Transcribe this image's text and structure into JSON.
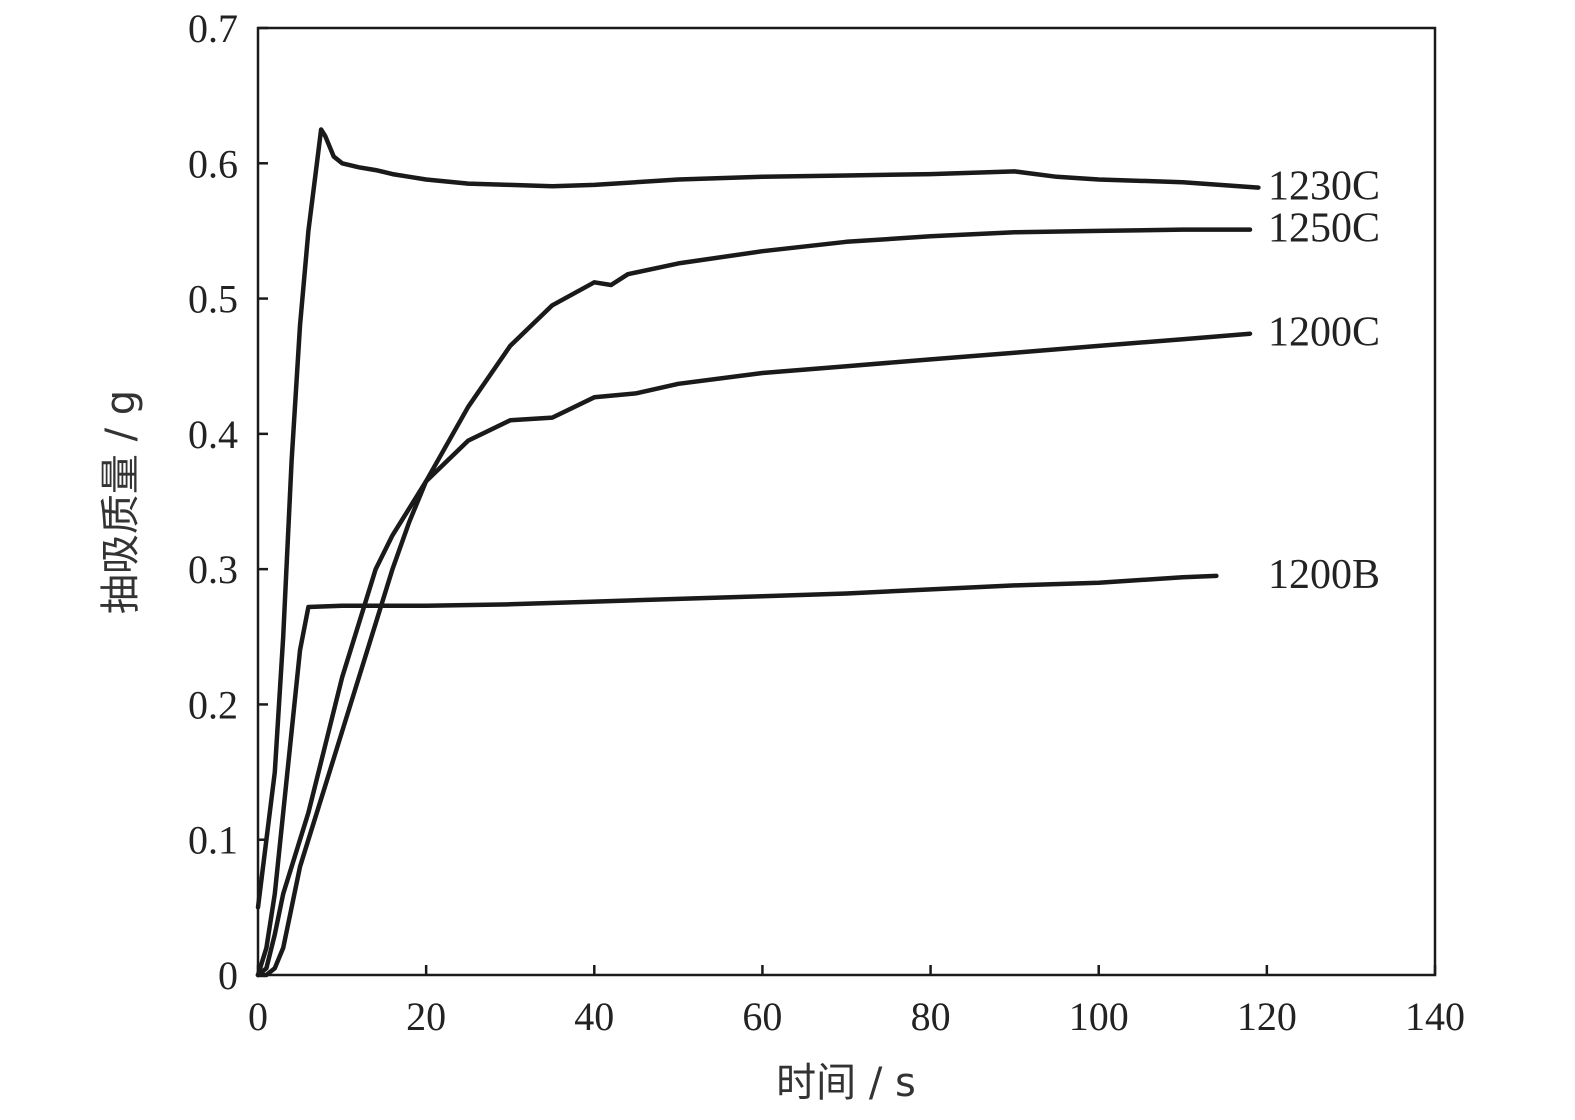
{
  "chart_data": {
    "type": "line",
    "title": "",
    "xlabel": "时间 / s",
    "ylabel": "抽吸质量 / g",
    "xlim": [
      0,
      140
    ],
    "ylim": [
      0,
      0.7
    ],
    "x_ticks": [
      0,
      20,
      40,
      60,
      80,
      100,
      120,
      140
    ],
    "x_tick_labels": [
      "0",
      "20",
      "40",
      "60",
      "80",
      "100",
      "120",
      "140"
    ],
    "y_ticks": [
      0,
      0.1,
      0.2,
      0.3,
      0.4,
      0.5,
      0.6,
      0.7
    ],
    "y_tick_labels": [
      "0",
      "0.1",
      "0.2",
      "0.3",
      "0.4",
      "0.5",
      "0.6",
      "0.7"
    ],
    "grid": false,
    "legend": "none",
    "line_color": "#1a1a1a",
    "series": [
      {
        "name": "1230C",
        "x": [
          0,
          1,
          2,
          3,
          4,
          5,
          6,
          7,
          7.5,
          8,
          9,
          10,
          12,
          14,
          16,
          18,
          20,
          25,
          30,
          35,
          40,
          50,
          60,
          70,
          80,
          90,
          95,
          100,
          110,
          119
        ],
        "y": [
          0.05,
          0.1,
          0.15,
          0.25,
          0.38,
          0.48,
          0.55,
          0.6,
          0.625,
          0.62,
          0.605,
          0.6,
          0.597,
          0.595,
          0.592,
          0.59,
          0.588,
          0.585,
          0.584,
          0.583,
          0.584,
          0.588,
          0.59,
          0.591,
          0.592,
          0.594,
          0.59,
          0.588,
          0.586,
          0.582
        ]
      },
      {
        "name": "1250C",
        "x": [
          0,
          1,
          2,
          3,
          4,
          5,
          6,
          8,
          10,
          12,
          14,
          16,
          18,
          20,
          25,
          30,
          35,
          40,
          42,
          44,
          50,
          60,
          70,
          80,
          90,
          100,
          110,
          118
        ],
        "y": [
          0,
          0,
          0.005,
          0.02,
          0.05,
          0.08,
          0.1,
          0.14,
          0.18,
          0.22,
          0.26,
          0.3,
          0.335,
          0.365,
          0.42,
          0.465,
          0.495,
          0.512,
          0.51,
          0.518,
          0.526,
          0.535,
          0.542,
          0.546,
          0.549,
          0.55,
          0.551,
          0.551
        ]
      },
      {
        "name": "1200C",
        "x": [
          0,
          1,
          2,
          3,
          4,
          5,
          6,
          8,
          10,
          12,
          14,
          16,
          18,
          20,
          25,
          30,
          35,
          40,
          45,
          50,
          60,
          70,
          80,
          90,
          100,
          110,
          118
        ],
        "y": [
          0,
          0.005,
          0.03,
          0.06,
          0.08,
          0.1,
          0.12,
          0.17,
          0.22,
          0.26,
          0.3,
          0.325,
          0.345,
          0.365,
          0.395,
          0.41,
          0.412,
          0.427,
          0.43,
          0.437,
          0.445,
          0.45,
          0.455,
          0.46,
          0.465,
          0.47,
          0.474
        ]
      },
      {
        "name": "1200B",
        "x": [
          0,
          1,
          2,
          3,
          4,
          5,
          6,
          10,
          20,
          30,
          40,
          50,
          60,
          70,
          80,
          90,
          100,
          110,
          114
        ],
        "y": [
          0,
          0.02,
          0.06,
          0.12,
          0.18,
          0.24,
          0.272,
          0.273,
          0.273,
          0.274,
          0.276,
          0.278,
          0.28,
          0.282,
          0.285,
          0.288,
          0.29,
          0.294,
          0.295
        ]
      }
    ]
  }
}
